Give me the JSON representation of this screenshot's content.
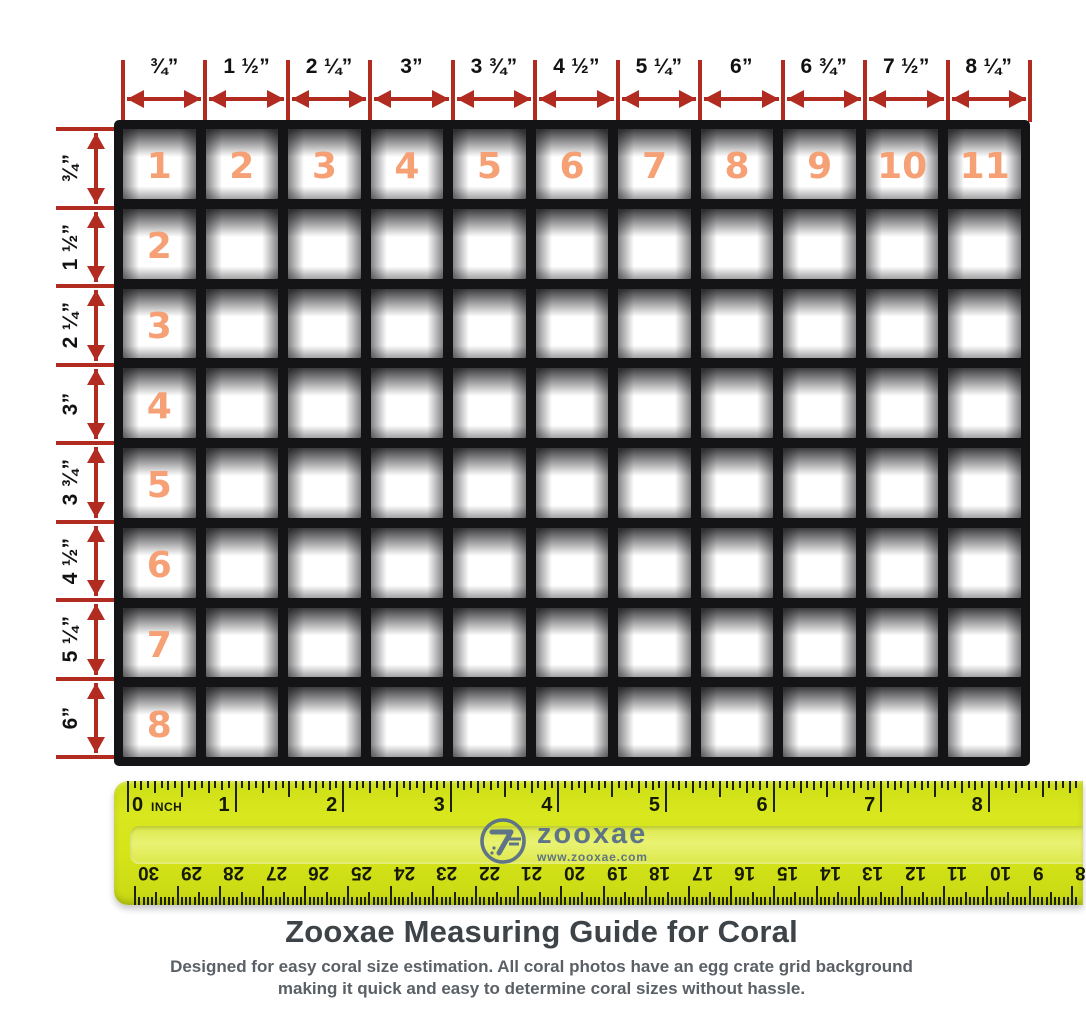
{
  "measure_top": {
    "labels": [
      "¾”",
      "1 ½”",
      "2 ¼”",
      "3”",
      "3 ¾”",
      "4 ½”",
      "5 ¼”",
      "6”",
      "6 ¾”",
      "7 ½”",
      "8 ¼”"
    ]
  },
  "measure_left": {
    "labels": [
      "¾”",
      "1 ½”",
      "2 ¼”",
      "3”",
      "3 ¾”",
      "4 ½”",
      "5 ¼”",
      "6”"
    ]
  },
  "grid": {
    "columns": 11,
    "rows": 8,
    "top_row_numbers": [
      "1",
      "2",
      "3",
      "4",
      "5",
      "6",
      "7",
      "8",
      "9",
      "10",
      "11"
    ],
    "left_col_numbers": [
      "2",
      "3",
      "4",
      "5",
      "6",
      "7",
      "8"
    ]
  },
  "ruler": {
    "unit_label": "INCH",
    "inch_numbers": [
      "0",
      "1",
      "2",
      "3",
      "4",
      "5",
      "6",
      "7",
      "8"
    ],
    "cm_numbers": [
      "30",
      "29",
      "28",
      "27",
      "26",
      "25",
      "24",
      "23",
      "22",
      "21",
      "20",
      "19",
      "18",
      "17",
      "16",
      "15",
      "14",
      "13",
      "12",
      "11",
      "10",
      "9",
      "8"
    ],
    "logo": {
      "brand": "zooxae",
      "url": "www.zooxae.com"
    }
  },
  "footer": {
    "title": "Zooxae Measuring Guide for Coral",
    "subtitle_line1": "Designed for easy coral size estimation. All coral photos have an egg crate grid background",
    "subtitle_line2": "making it quick and easy to determine coral sizes without hassle."
  },
  "colors": {
    "arrow_red": "#b12b21",
    "cell_number_orange": "#f5a075",
    "ruler_yellow": "#d6e41c",
    "logo_slate": "#5f7486",
    "grid_black": "#141417",
    "title_gray": "#3d4347",
    "subtitle_gray": "#5a6065"
  }
}
